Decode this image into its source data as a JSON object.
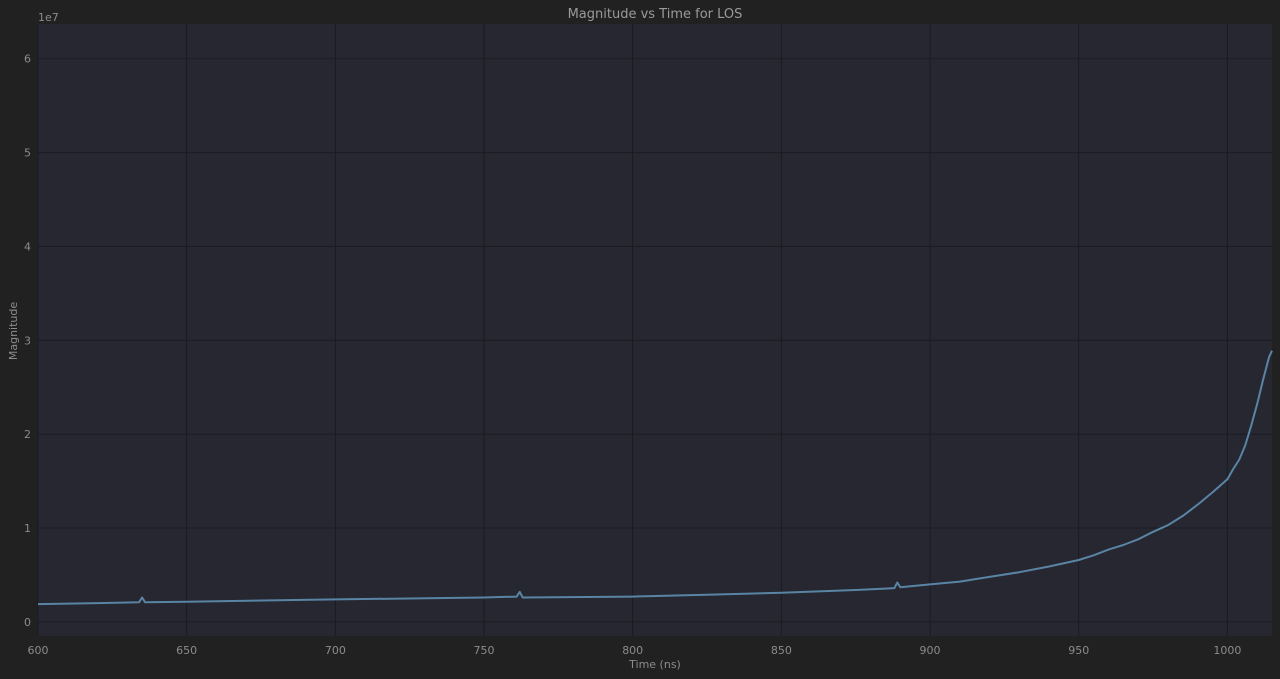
{
  "chart_data": {
    "type": "line",
    "title": "Magnitude vs Time for LOS",
    "xlabel": "Time (ns)",
    "ylabel": "Magnitude",
    "y_scale_label": "1e7",
    "xlim": [
      600,
      1015
    ],
    "ylim": [
      -1500000,
      63700000
    ],
    "x_ticks": [
      600,
      650,
      700,
      750,
      800,
      850,
      900,
      950,
      1000
    ],
    "x_tick_labels": [
      "600",
      "650",
      "700",
      "750",
      "800",
      "850",
      "900",
      "950",
      "1000"
    ],
    "y_ticks": [
      0,
      10000000,
      20000000,
      30000000,
      40000000,
      50000000,
      60000000
    ],
    "y_tick_labels": [
      "0",
      "1",
      "2",
      "3",
      "4",
      "5",
      "6"
    ],
    "grid": true,
    "legend": "none",
    "series": [
      {
        "color": "#5a84a4",
        "x": [
          600,
          620,
          634,
          635,
          636,
          650,
          700,
          750,
          761,
          762,
          763,
          800,
          825,
          850,
          875,
          888,
          889,
          890,
          900,
          910,
          920,
          930,
          940,
          950,
          955,
          960,
          965,
          970,
          975,
          980,
          985,
          990,
          995,
          1000,
          1002,
          1004,
          1006,
          1008,
          1010,
          1012,
          1014,
          1015
        ],
        "y": [
          1900000,
          2000000,
          2100000,
          2600000,
          2100000,
          2150000,
          2400000,
          2600000,
          2700000,
          3200000,
          2600000,
          2700000,
          2900000,
          3100000,
          3400000,
          3600000,
          4200000,
          3700000,
          4000000,
          4300000,
          4800000,
          5300000,
          5900000,
          6600000,
          7100000,
          7700000,
          8200000,
          8800000,
          9600000,
          10300000,
          11300000,
          12500000,
          13800000,
          15200000,
          16300000,
          17300000,
          18800000,
          20900000,
          23200000,
          25800000,
          28200000,
          28900000
        ]
      }
    ]
  }
}
